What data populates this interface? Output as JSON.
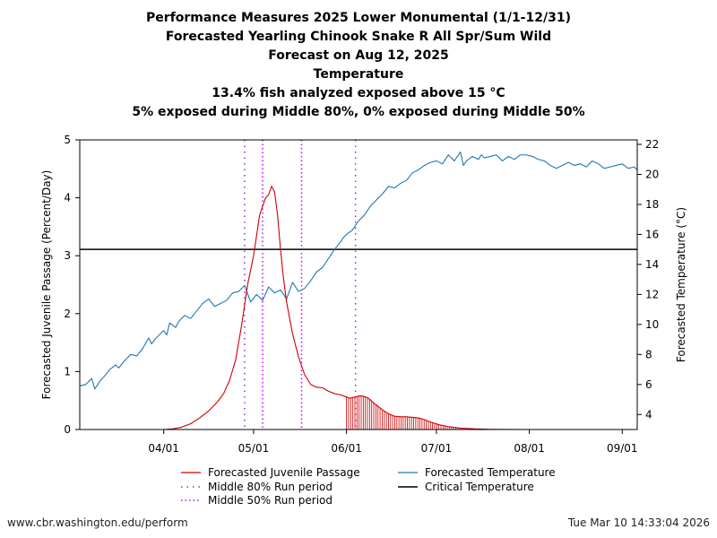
{
  "titles": {
    "line1": "Performance Measures 2025 Lower Monumental (1/1-12/31)",
    "line2": "Forecasted Yearling Chinook Snake R All Spr/Sum Wild",
    "line3": "Forecast on Aug 12, 2025",
    "line4": "Temperature",
    "line5": "13.4% fish analyzed exposed above 15 °C",
    "line6": "5% exposed during Middle 80%, 0% exposed during Middle 50%"
  },
  "footer": {
    "left": "www.cbr.washington.edu/perform",
    "right": "Tue Mar 10 14:33:04 2026"
  },
  "chart_data": {
    "type": "line",
    "title": "Performance Measures 2025 Lower Monumental (1/1-12/31)",
    "xlabel": "",
    "ylabel": "Forecasted Juvenile Passage (Percent/Day)",
    "ylabel_right": "Forecasted Temperature (°C)",
    "xlim_day_of_year": [
      63,
      249
    ],
    "ylim": [
      0,
      5
    ],
    "ylim_right": [
      3,
      22.3
    ],
    "yticks": [
      "0",
      "1",
      "2",
      "3",
      "4",
      "5"
    ],
    "yticks_right": [
      "4",
      "6",
      "8",
      "10",
      "12",
      "14",
      "16",
      "18",
      "20",
      "22"
    ],
    "xticks": [
      {
        "label": "04/01",
        "day": 91
      },
      {
        "label": "05/01",
        "day": 121
      },
      {
        "label": "06/01",
        "day": 152
      },
      {
        "label": "07/01",
        "day": 182
      },
      {
        "label": "08/01",
        "day": 213
      },
      {
        "label": "09/01",
        "day": 244
      }
    ],
    "critical_temperature_c": 15,
    "middle_80_run_days": [
      118,
      155
    ],
    "middle_50_run_days": [
      124,
      137
    ],
    "exposure_hatch_start_day": 152,
    "colors": {
      "passage": "#cc0000",
      "temperature": "#1f77b4",
      "critical": "#000000",
      "middle80": "#8a2be2",
      "middle50": "#cc00ff"
    },
    "series": [
      {
        "name": "Forecasted Juvenile Passage",
        "x": [
          91,
          94,
          97,
          100,
          103,
          106,
          109,
          111,
          113,
          115,
          117,
          119,
          121,
          123,
          125,
          126,
          127,
          128,
          129,
          130,
          131,
          132,
          134,
          136,
          138,
          140,
          142,
          144,
          146,
          148,
          150,
          152,
          153,
          154,
          155,
          156,
          157,
          158,
          159,
          160,
          161,
          162,
          164,
          166,
          168,
          170,
          172,
          174,
          176,
          178,
          180,
          183,
          186,
          190,
          195,
          200,
          206,
          213
        ],
        "values": [
          0,
          0.01,
          0.04,
          0.1,
          0.2,
          0.32,
          0.48,
          0.62,
          0.85,
          1.2,
          1.8,
          2.5,
          3.0,
          3.7,
          4.0,
          4.05,
          4.2,
          4.1,
          3.7,
          3.1,
          2.6,
          2.2,
          1.65,
          1.25,
          0.95,
          0.78,
          0.73,
          0.72,
          0.66,
          0.62,
          0.6,
          0.56,
          0.54,
          0.55,
          0.56,
          0.58,
          0.58,
          0.57,
          0.55,
          0.51,
          0.46,
          0.42,
          0.34,
          0.27,
          0.23,
          0.22,
          0.22,
          0.21,
          0.2,
          0.17,
          0.13,
          0.08,
          0.05,
          0.025,
          0.01,
          0.004,
          0.001,
          0
        ]
      },
      {
        "name": "Forecasted Temperature",
        "x": [
          63,
          65,
          66,
          67,
          68,
          70,
          71,
          73,
          75,
          76,
          78,
          80,
          82,
          84,
          86,
          87,
          88,
          90,
          91,
          92,
          93,
          95,
          96,
          98,
          100,
          102,
          104,
          106,
          108,
          110,
          112,
          114,
          116,
          118,
          120,
          122,
          124,
          126,
          128,
          130,
          132,
          134,
          136,
          138,
          140,
          142,
          144,
          146,
          148,
          150,
          151,
          152,
          154,
          156,
          158,
          160,
          162,
          164,
          166,
          168,
          170,
          172,
          174,
          176,
          178,
          180,
          182,
          184,
          186,
          188,
          190,
          191,
          192,
          194,
          196,
          197,
          198,
          200,
          202,
          204,
          206,
          208,
          210,
          212,
          214,
          216,
          218,
          220,
          222,
          224,
          226,
          228,
          230,
          232,
          234,
          236,
          238,
          240,
          242,
          244,
          246,
          248,
          249
        ],
        "values": [
          5.9,
          6.0,
          6.2,
          6.4,
          5.7,
          6.3,
          6.5,
          7.0,
          7.3,
          7.1,
          7.6,
          8.0,
          7.9,
          8.4,
          9.1,
          8.7,
          9.0,
          9.4,
          9.6,
          9.3,
          10.1,
          9.8,
          10.2,
          10.6,
          10.4,
          10.9,
          11.4,
          11.7,
          11.2,
          11.4,
          11.6,
          12.1,
          12.2,
          12.6,
          11.5,
          12.0,
          11.6,
          12.5,
          12.1,
          12.3,
          11.7,
          12.8,
          12.2,
          12.4,
          12.9,
          13.5,
          13.8,
          14.4,
          15.0,
          15.5,
          15.8,
          16.0,
          16.3,
          16.9,
          17.3,
          17.9,
          18.3,
          18.7,
          19.2,
          19.1,
          19.4,
          19.6,
          20.1,
          20.3,
          20.6,
          20.8,
          20.9,
          20.7,
          21.3,
          20.9,
          21.5,
          20.6,
          20.9,
          21.2,
          21.0,
          21.3,
          21.1,
          21.2,
          21.3,
          20.9,
          21.2,
          21.0,
          21.3,
          21.3,
          21.2,
          21.0,
          20.9,
          20.6,
          20.4,
          20.6,
          20.8,
          20.6,
          20.7,
          20.5,
          20.9,
          20.7,
          20.4,
          20.5,
          20.6,
          20.7,
          20.4,
          20.5,
          20.3
        ]
      }
    ],
    "legend": {
      "passage": "Forecasted Juvenile Passage",
      "middle80": "Middle 80% Run period",
      "middle50": "Middle 50% Run period",
      "temperature": "Forecasted Temperature",
      "critical": "Critical Temperature"
    }
  }
}
